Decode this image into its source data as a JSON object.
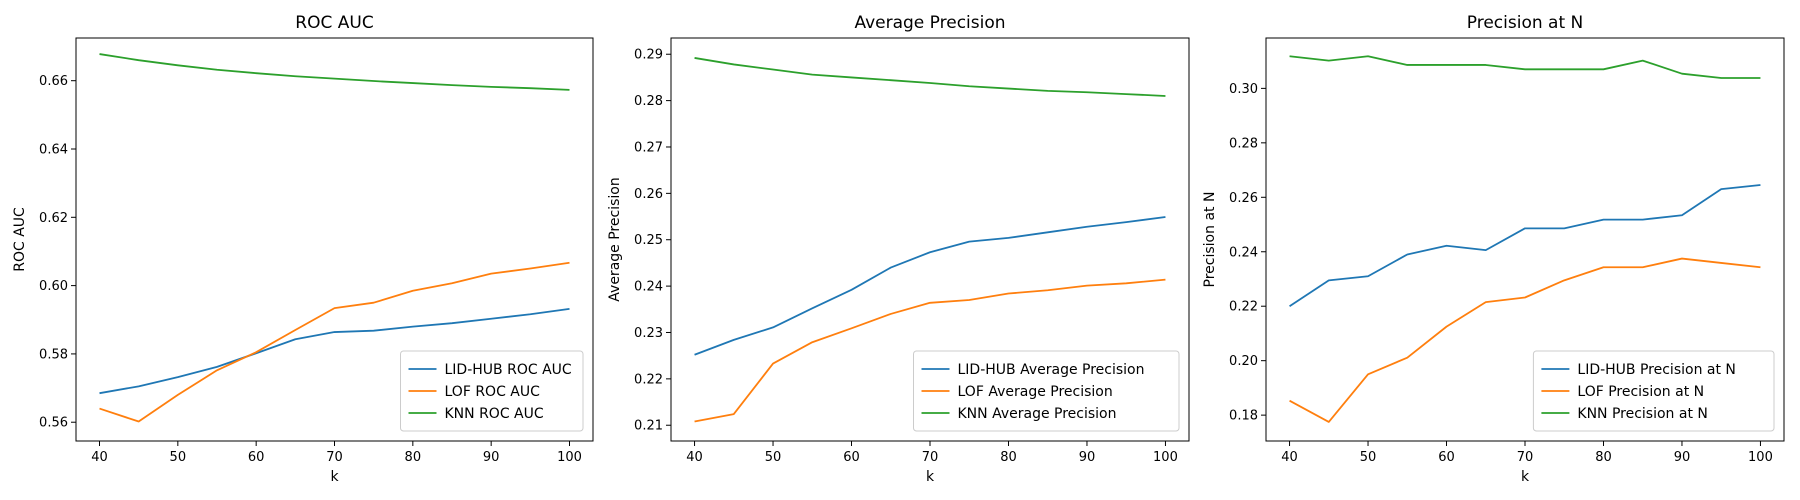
{
  "chart_data": [
    {
      "type": "line",
      "title": "ROC AUC",
      "xlabel": "k",
      "ylabel": "ROC AUC",
      "x": [
        40,
        45,
        50,
        55,
        60,
        65,
        70,
        75,
        80,
        85,
        90,
        95,
        100
      ],
      "xlim": [
        37,
        103
      ],
      "ylim": [
        0.5545,
        0.6725
      ],
      "xticks": [
        40,
        50,
        60,
        70,
        80,
        90,
        100
      ],
      "yticks": [
        0.56,
        0.58,
        0.6,
        0.62,
        0.64,
        0.66
      ],
      "ytick_decimals": 2,
      "grid": false,
      "legend": "lower-right",
      "series": [
        {
          "name": "LID-HUB ROC AUC",
          "color": "#1f77b4",
          "values": [
            0.5685,
            0.5705,
            0.5732,
            0.5762,
            0.5802,
            0.5843,
            0.5864,
            0.5868,
            0.588,
            0.589,
            0.5903,
            0.5916,
            0.5932
          ]
        },
        {
          "name": "LOF ROC AUC",
          "color": "#ff7f0e",
          "values": [
            0.564,
            0.5602,
            0.568,
            0.5752,
            0.5805,
            0.587,
            0.5934,
            0.595,
            0.5985,
            0.6007,
            0.6035,
            0.605,
            0.6067
          ]
        },
        {
          "name": "KNN ROC AUC",
          "color": "#2ca02c",
          "values": [
            0.6678,
            0.666,
            0.6645,
            0.6632,
            0.6622,
            0.6613,
            0.6606,
            0.6599,
            0.6593,
            0.6587,
            0.6582,
            0.6578,
            0.6573
          ]
        }
      ]
    },
    {
      "type": "line",
      "title": "Average Precision",
      "xlabel": "k",
      "ylabel": "Average Precision",
      "x": [
        40,
        45,
        50,
        55,
        60,
        65,
        70,
        75,
        80,
        85,
        90,
        95,
        100
      ],
      "xlim": [
        37,
        103
      ],
      "ylim": [
        0.2066,
        0.2935
      ],
      "xticks": [
        40,
        50,
        60,
        70,
        80,
        90,
        100
      ],
      "yticks": [
        0.21,
        0.22,
        0.23,
        0.24,
        0.25,
        0.26,
        0.27,
        0.28,
        0.29
      ],
      "ytick_decimals": 2,
      "grid": false,
      "legend": "lower-right",
      "series": [
        {
          "name": "LID-HUB Average Precision",
          "color": "#1f77b4",
          "values": [
            0.2252,
            0.2284,
            0.2311,
            0.2352,
            0.2392,
            0.244,
            0.2473,
            0.2496,
            0.2504,
            0.2516,
            0.2528,
            0.2538,
            0.2549
          ]
        },
        {
          "name": "LOF Average Precision",
          "color": "#ff7f0e",
          "values": [
            0.2108,
            0.2124,
            0.2233,
            0.2279,
            0.2309,
            0.234,
            0.2364,
            0.237,
            0.2384,
            0.2391,
            0.2401,
            0.2406,
            0.2414
          ]
        },
        {
          "name": "KNN Average Precision",
          "color": "#2ca02c",
          "values": [
            0.2892,
            0.2878,
            0.2867,
            0.2856,
            0.285,
            0.2844,
            0.2838,
            0.2831,
            0.2826,
            0.2821,
            0.2818,
            0.2814,
            0.281
          ]
        }
      ]
    },
    {
      "type": "line",
      "title": "Precision at N",
      "xlabel": "k",
      "ylabel": "Precision at N",
      "x": [
        40,
        45,
        50,
        55,
        60,
        65,
        70,
        75,
        80,
        85,
        90,
        95,
        100
      ],
      "xlim": [
        37,
        103
      ],
      "ylim": [
        0.1705,
        0.3185
      ],
      "xticks": [
        40,
        50,
        60,
        70,
        80,
        90,
        100
      ],
      "yticks": [
        0.18,
        0.2,
        0.22,
        0.24,
        0.26,
        0.28,
        0.3
      ],
      "ytick_decimals": 2,
      "grid": false,
      "legend": "lower-right",
      "series": [
        {
          "name": "LID-HUB Precision at N",
          "color": "#1f77b4",
          "values": [
            0.22,
            0.2295,
            0.231,
            0.239,
            0.2422,
            0.2406,
            0.2486,
            0.2486,
            0.2518,
            0.2518,
            0.2534,
            0.263,
            0.2645
          ]
        },
        {
          "name": "LOF Precision at N",
          "color": "#ff7f0e",
          "values": [
            0.1853,
            0.1775,
            0.195,
            0.2011,
            0.2125,
            0.2215,
            0.2232,
            0.2295,
            0.2343,
            0.2343,
            0.2375,
            0.2359,
            0.2343
          ]
        },
        {
          "name": "KNN Precision at N",
          "color": "#2ca02c",
          "values": [
            0.3118,
            0.3102,
            0.3118,
            0.3086,
            0.3086,
            0.3086,
            0.307,
            0.307,
            0.307,
            0.3102,
            0.3054,
            0.3038,
            0.3038
          ]
        }
      ]
    }
  ]
}
